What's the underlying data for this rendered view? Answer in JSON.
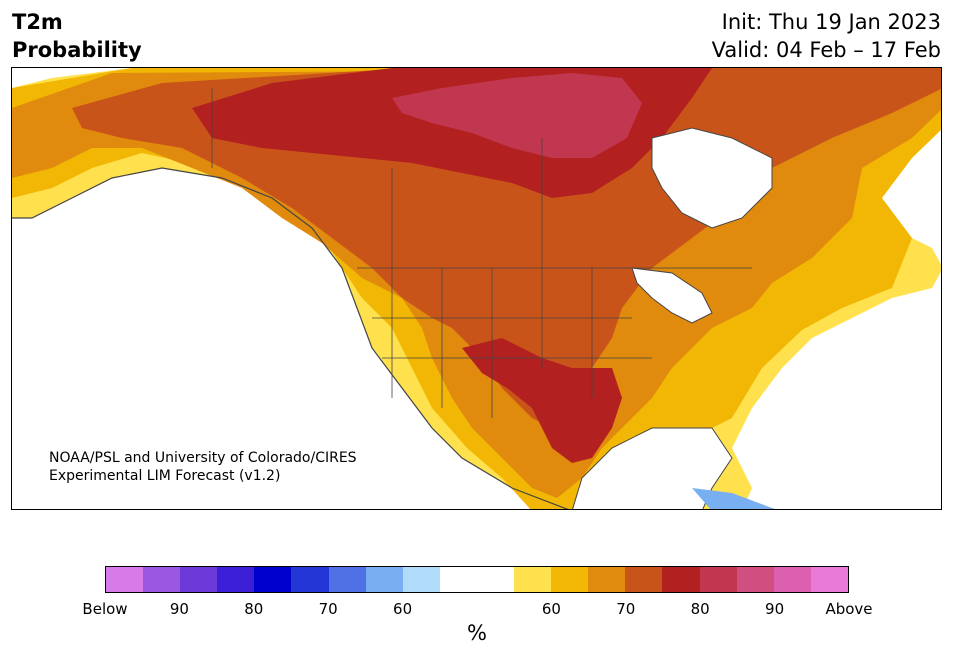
{
  "title": {
    "line1": "T2m",
    "line2": "Probability"
  },
  "meta": {
    "init": "Init: Thu 19 Jan 2023",
    "valid": "Valid: 04 Feb – 17 Feb"
  },
  "credit": {
    "line1": "NOAA/PSL and University of Colorado/CIRES",
    "line2": "Experimental LIM Forecast (v1.2)"
  },
  "colorbar": {
    "colors": [
      "#d67be8",
      "#9b57e0",
      "#6d39d9",
      "#3a1fd6",
      "#0000cc",
      "#2536d6",
      "#5070e6",
      "#78aff0",
      "#b0dcfa",
      "#ffffff",
      "#ffffff",
      "#ffe04d",
      "#f2b705",
      "#e08a0e",
      "#c9541a",
      "#b32020",
      "#c23750",
      "#d04e80",
      "#dd60b0",
      "#e97ad8"
    ],
    "labels": [
      "Below",
      "90",
      "80",
      "70",
      "60",
      "60",
      "70",
      "80",
      "90",
      "Above"
    ],
    "unit": "%"
  },
  "map": {
    "ocean": "#ffffff",
    "border": "#444444"
  }
}
